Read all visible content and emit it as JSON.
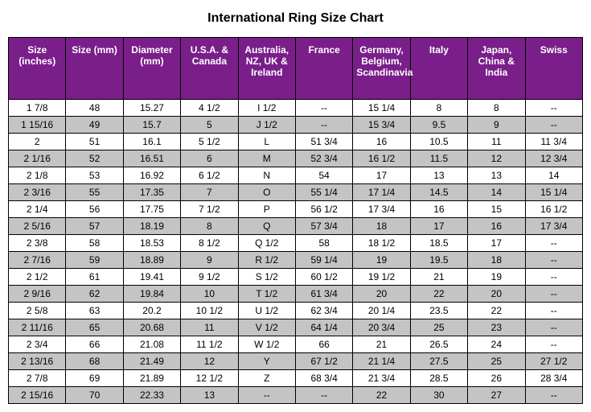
{
  "title": "International Ring Size Chart",
  "columns": [
    "Size (inches)",
    "Size (mm)",
    "Diameter (mm)",
    "U.S.A. & Canada",
    "Australia, NZ, UK & Ireland",
    "France",
    "Germany, Belgium, Scandinavia",
    "Italy",
    "Japan, China & India",
    "Swiss"
  ],
  "rows": [
    [
      "1  7/8",
      "48",
      "15.27",
      "4  1/2",
      "I  1/2",
      "--",
      "15  1/4",
      "8",
      "8",
      "--"
    ],
    [
      "1  15/16",
      "49",
      "15.7",
      "5",
      "J  1/2",
      "--",
      "15  3/4",
      "9.5",
      "9",
      "--"
    ],
    [
      "2",
      "51",
      "16.1",
      "5  1/2",
      "L",
      "51  3/4",
      "16",
      "10.5",
      "11",
      "11  3/4"
    ],
    [
      "2  1/16",
      "52",
      "16.51",
      "6",
      "M",
      "52  3/4",
      "16  1/2",
      "11.5",
      "12",
      "12  3/4"
    ],
    [
      "2  1/8",
      "53",
      "16.92",
      "6  1/2",
      "N",
      "54",
      "17",
      "13",
      "13",
      "14"
    ],
    [
      "2  3/16",
      "55",
      "17.35",
      "7",
      "O",
      "55  1/4",
      "17  1/4",
      "14.5",
      "14",
      "15  1/4"
    ],
    [
      "2  1/4",
      "56",
      "17.75",
      "7  1/2",
      "P",
      "56  1/2",
      "17  3/4",
      "16",
      "15",
      "16  1/2"
    ],
    [
      "2  5/16",
      "57",
      "18.19",
      "8",
      "Q",
      "57  3/4",
      "18",
      "17",
      "16",
      "17  3/4"
    ],
    [
      "2  3/8",
      "58",
      "18.53",
      "8  1/2",
      "Q  1/2",
      "58",
      "18  1/2",
      "18.5",
      "17",
      "--"
    ],
    [
      "2  7/16",
      "59",
      "18.89",
      "9",
      "R  1/2",
      "59  1/4",
      "19",
      "19.5",
      "18",
      "--"
    ],
    [
      "2  1/2",
      "61",
      "19.41",
      "9  1/2",
      "S  1/2",
      "60  1/2",
      "19  1/2",
      "21",
      "19",
      "--"
    ],
    [
      "2  9/16",
      "62",
      "19.84",
      "10",
      "T  1/2",
      "61  3/4",
      "20",
      "22",
      "20",
      "--"
    ],
    [
      "2  5/8",
      "63",
      "20.2",
      "10  1/2",
      "U  1/2",
      "62  3/4",
      "20  1/4",
      "23.5",
      "22",
      "--"
    ],
    [
      "2  11/16",
      "65",
      "20.68",
      "11",
      "V  1/2",
      "64  1/4",
      "20  3/4",
      "25",
      "23",
      "--"
    ],
    [
      "2  3/4",
      "66",
      "21.08",
      "11  1/2",
      "W  1/2",
      "66",
      "21",
      "26.5",
      "24",
      "--"
    ],
    [
      "2  13/16",
      "68",
      "21.49",
      "12",
      "Y",
      "67  1/2",
      "21  1/4",
      "27.5",
      "25",
      "27  1/2"
    ],
    [
      "2  7/8",
      "69",
      "21.89",
      "12  1/2",
      "Z",
      "68  3/4",
      "21  3/4",
      "28.5",
      "26",
      "28  3/4"
    ],
    [
      "2  15/16",
      "70",
      "22.33",
      "13",
      "--",
      "--",
      "22",
      "30",
      "27",
      "--"
    ]
  ]
}
